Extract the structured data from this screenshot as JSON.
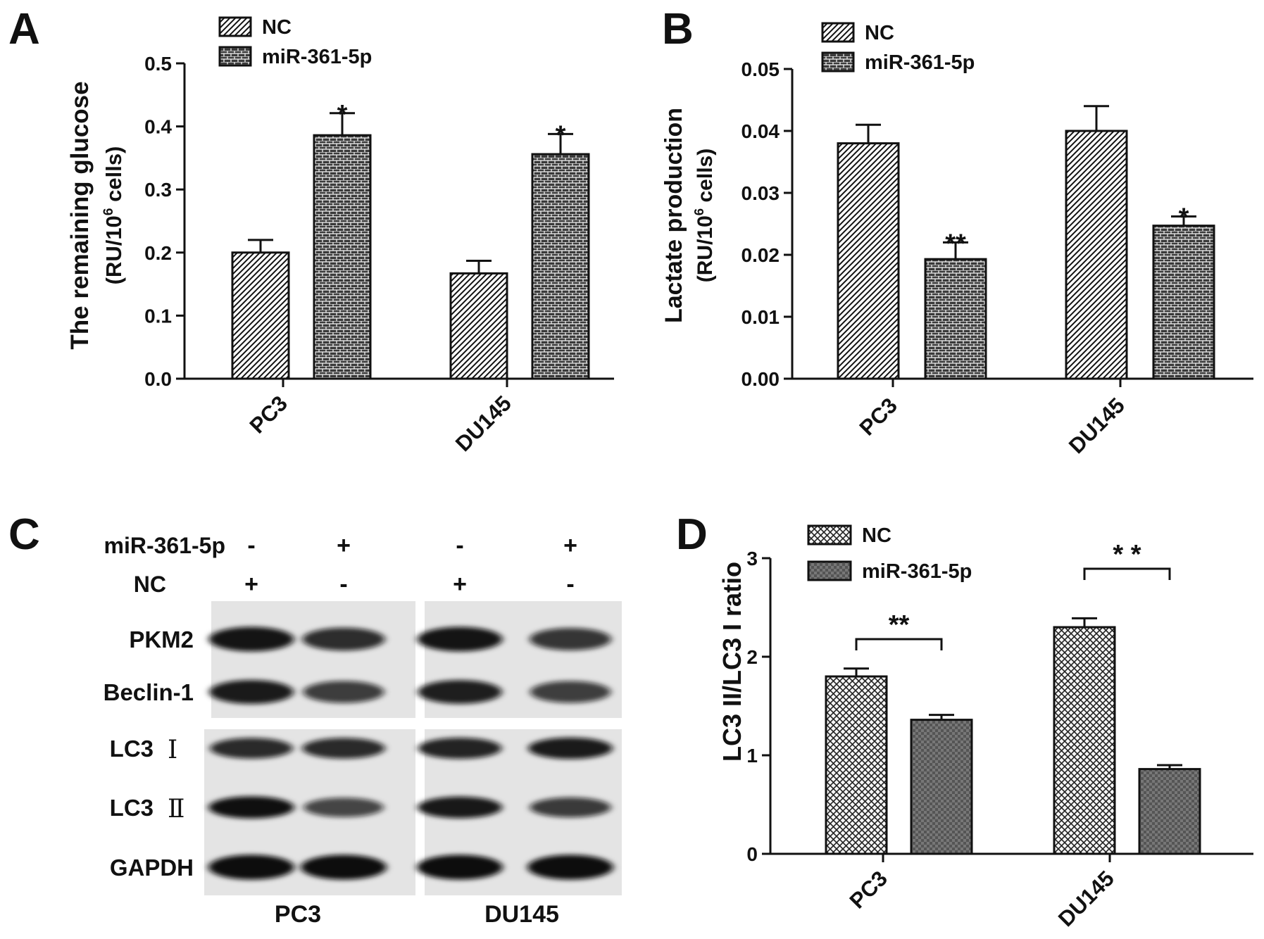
{
  "chart_data": [
    {
      "panel": "A",
      "type": "bar",
      "categories": [
        "PC3",
        "DU145"
      ],
      "series": [
        {
          "name": "NC",
          "values": [
            0.2,
            0.167
          ],
          "errors": [
            0.02,
            0.02
          ],
          "pattern": "diagonal"
        },
        {
          "name": "miR-361-5p",
          "values": [
            0.386,
            0.356
          ],
          "errors": [
            0.035,
            0.032
          ],
          "pattern": "brick"
        }
      ],
      "significance": [
        {
          "category": "PC3",
          "series": "miR-361-5p",
          "text": "*"
        },
        {
          "category": "DU145",
          "series": "miR-361-5p",
          "text": "*"
        }
      ],
      "ylabel_line1": "The remaining glucose",
      "ylabel_line2_prefix": "(RU/10",
      "ylabel_line2_sup": "6",
      "ylabel_line2_suffix": " cells)",
      "ylim": [
        0,
        0.5
      ],
      "yticks": [
        "0.0",
        "0.1",
        "0.2",
        "0.3",
        "0.4",
        "0.5"
      ],
      "legend": "top-left",
      "grid": false
    },
    {
      "panel": "B",
      "type": "bar",
      "categories": [
        "PC3",
        "DU145"
      ],
      "series": [
        {
          "name": "NC",
          "values": [
            0.038,
            0.04
          ],
          "errors": [
            0.003,
            0.004
          ],
          "pattern": "diagonal"
        },
        {
          "name": "miR-361-5p",
          "values": [
            0.0193,
            0.0247
          ],
          "errors": [
            0.0027,
            0.0015
          ],
          "pattern": "brick"
        }
      ],
      "significance": [
        {
          "category": "PC3",
          "series": "miR-361-5p",
          "text": "**"
        },
        {
          "category": "DU145",
          "series": "miR-361-5p",
          "text": "*"
        }
      ],
      "ylabel_line1": "Lactate production",
      "ylabel_line2_prefix": "(RU/10",
      "ylabel_line2_sup": "6",
      "ylabel_line2_suffix": " cells)",
      "ylim": [
        0,
        0.05
      ],
      "yticks": [
        "0.00",
        "0.01",
        "0.02",
        "0.03",
        "0.04",
        "0.05"
      ],
      "legend": "top-left",
      "grid": false
    },
    {
      "panel": "D",
      "type": "bar",
      "categories": [
        "PC3",
        "DU145"
      ],
      "series": [
        {
          "name": "NC",
          "values": [
            1.8,
            2.3
          ],
          "errors": [
            0.08,
            0.09
          ],
          "pattern": "crosshatch"
        },
        {
          "name": "miR-361-5p",
          "values": [
            1.36,
            0.86
          ],
          "errors": [
            0.05,
            0.04
          ],
          "pattern": "checker"
        }
      ],
      "significance": [
        {
          "category": "PC3",
          "text": "**",
          "bracket": true
        },
        {
          "category": "DU145",
          "text": "* *",
          "bracket": true
        }
      ],
      "ylabel_line1": "LC3 II/LC3 I ratio",
      "ylim": [
        0,
        3
      ],
      "yticks": [
        "0",
        "1",
        "2",
        "3"
      ],
      "legend": "top-left",
      "grid": false
    }
  ],
  "blot": {
    "panel": "C",
    "treatment_rows": [
      {
        "label": "miR-361-5p",
        "signs": [
          "-",
          "+",
          "-",
          "+"
        ]
      },
      {
        "label": "NC",
        "signs": [
          "+",
          "-",
          "+",
          "-"
        ]
      }
    ],
    "band_rows": [
      {
        "label": "PKM2",
        "label_suffix": "",
        "intensity": [
          0.95,
          0.78,
          0.95,
          0.72
        ]
      },
      {
        "label": "Beclin-1",
        "label_suffix": "",
        "intensity": [
          0.9,
          0.68,
          0.88,
          0.66
        ]
      },
      {
        "label": "LC3",
        "label_suffix": "Ⅰ",
        "intensity": [
          0.8,
          0.8,
          0.85,
          0.9
        ]
      },
      {
        "label": "LC3",
        "label_suffix": "Ⅱ",
        "intensity": [
          0.98,
          0.62,
          0.92,
          0.7
        ]
      },
      {
        "label": "GAPDH",
        "label_suffix": "",
        "intensity": [
          1.0,
          1.0,
          1.0,
          1.0
        ]
      }
    ],
    "group_labels": [
      "PC3",
      "DU145"
    ]
  },
  "colors": {
    "ink": "#111111",
    "bar_fill": "#ffffff",
    "blot_bg": "#e4e4e4",
    "band": "#0c0c0c"
  }
}
